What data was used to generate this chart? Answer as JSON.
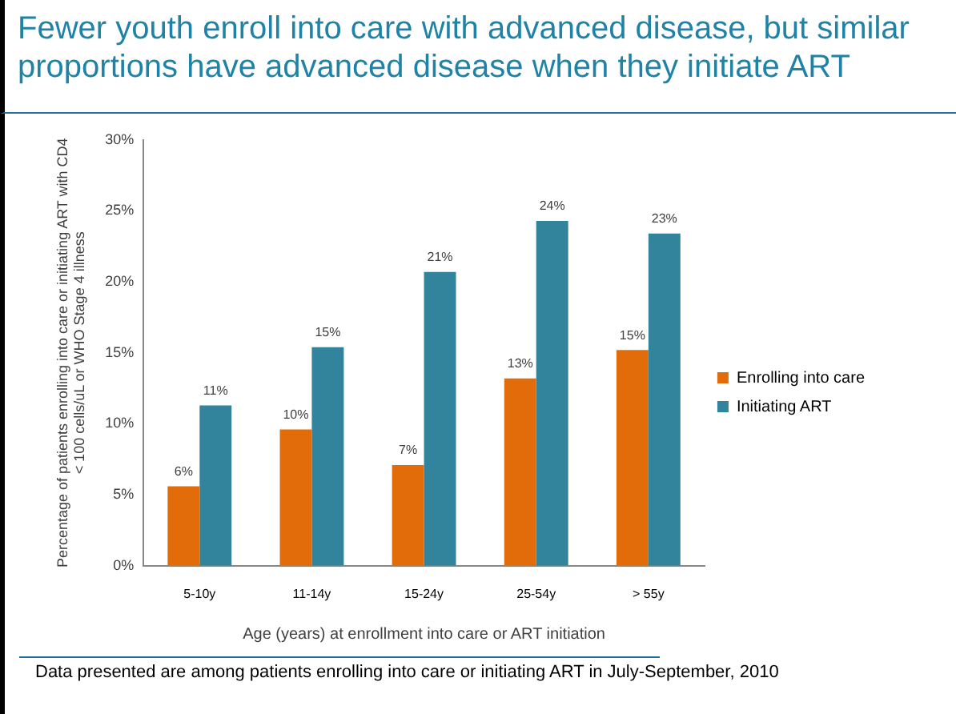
{
  "chart_data": {
    "type": "bar",
    "title": "Fewer youth enroll into care with advanced disease, but similar proportions have advanced disease when they initiate ART",
    "xlabel": "Age (years) at enrollment into care or ART initiation",
    "ylabel": "Percentage of patients enrolling into care or initiating ART with CD4 < 100 cells/uL or WHO Stage 4 illness",
    "annotations": [
      "Data presented are among patients enrolling into care or initiating ART in July-September, 2010"
    ],
    "categories": [
      "5-10y",
      "11-14y",
      "15-24y",
      "25-54y",
      "> 55y"
    ],
    "series": [
      {
        "name": "Enrolling into care",
        "color": "#e36c0a",
        "values": [
          5.6,
          9.6,
          7.1,
          13.2,
          15.2
        ],
        "value_labels": [
          "6%",
          "10%",
          "7%",
          "13%",
          "15%"
        ]
      },
      {
        "name": "Initiating ART",
        "color": "#31849b",
        "values": [
          11.3,
          15.4,
          20.7,
          24.3,
          23.4
        ],
        "value_labels": [
          "11%",
          "15%",
          "21%",
          "24%",
          "23%"
        ]
      }
    ],
    "ylim": [
      0,
      30
    ],
    "yticks": [
      {
        "value": 0,
        "label": "0%"
      },
      {
        "value": 5,
        "label": "5%"
      },
      {
        "value": 10,
        "label": "10%"
      },
      {
        "value": 15,
        "label": "15%"
      },
      {
        "value": 20,
        "label": "20%"
      },
      {
        "value": 25,
        "label": "25%"
      },
      {
        "value": 30,
        "label": "30%"
      }
    ],
    "grid": false,
    "legend": "right"
  }
}
